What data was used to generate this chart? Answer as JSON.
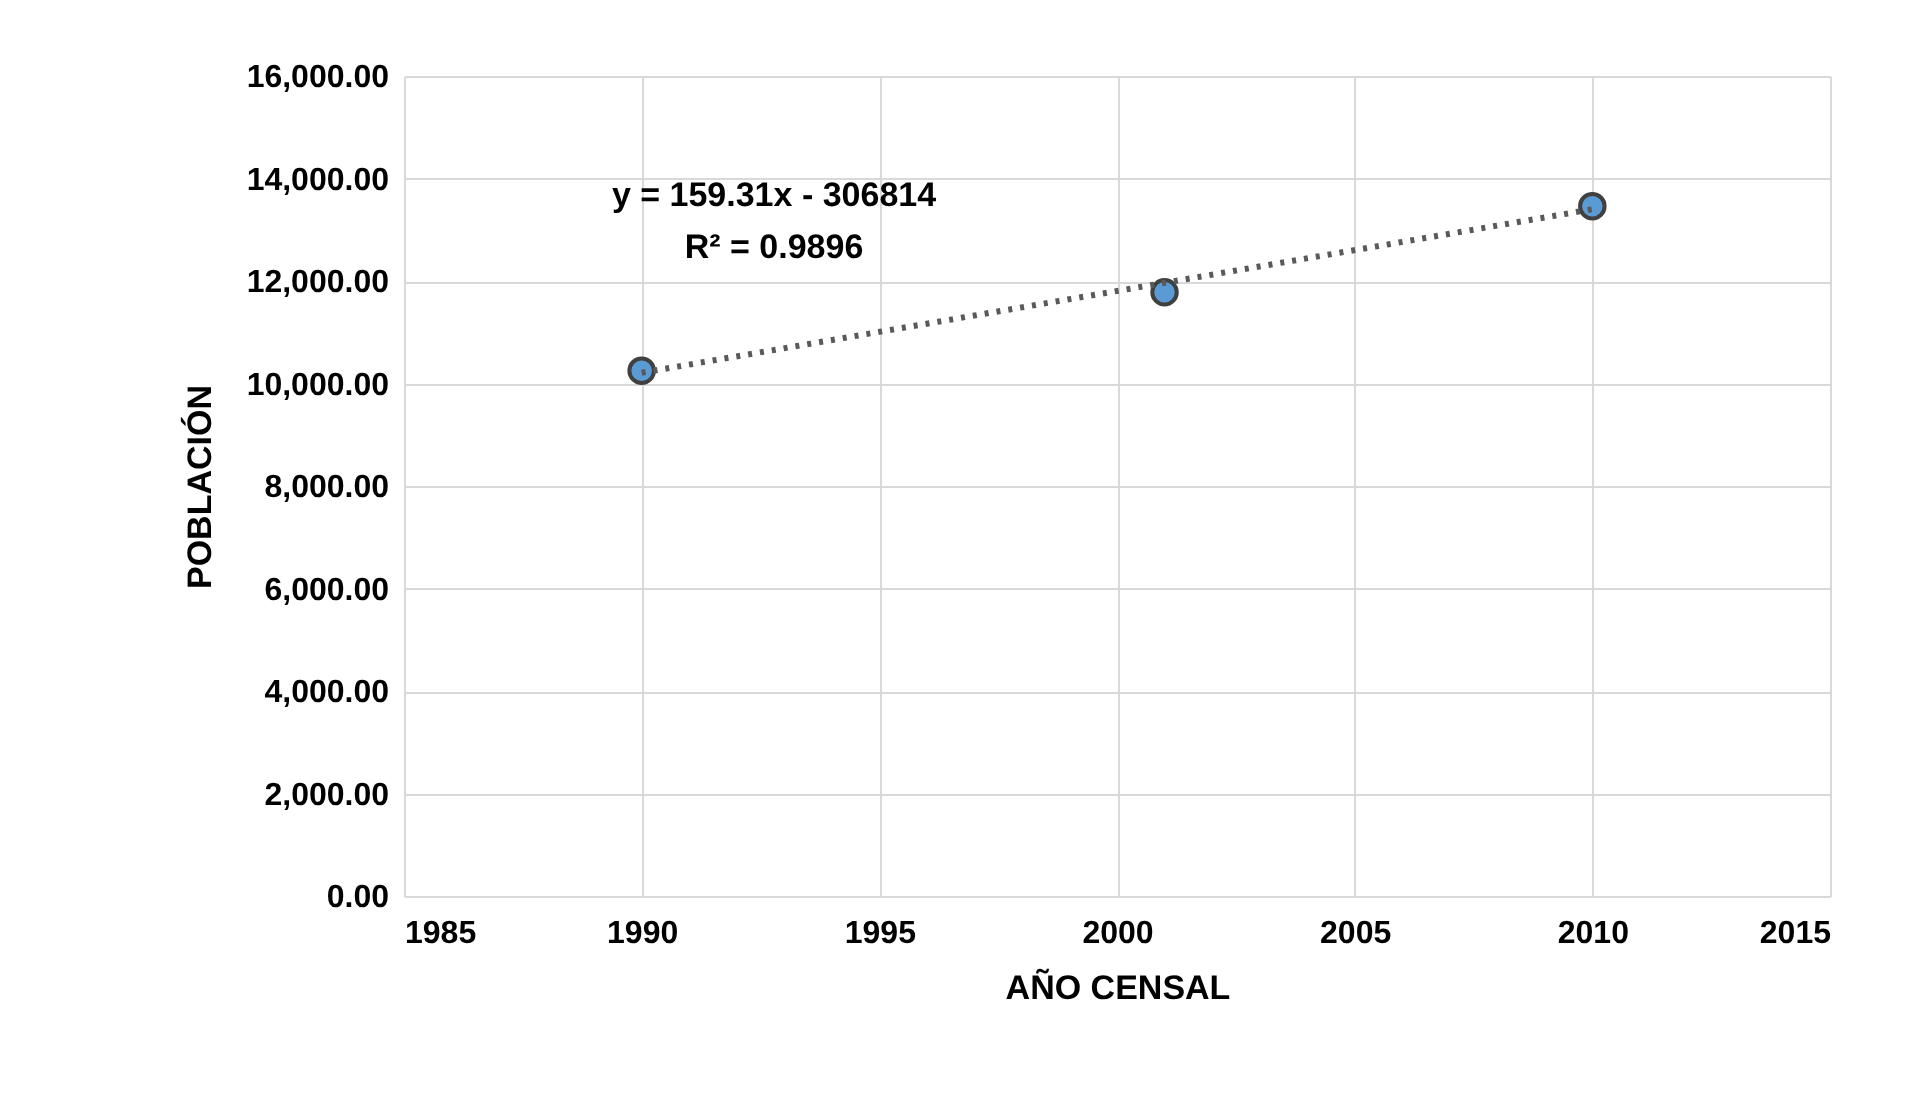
{
  "chart_data": {
    "type": "scatter",
    "xlabel": "AÑO CENSAL",
    "ylabel": "POBLACIÓN",
    "series": [
      {
        "color": "#5b9bd5",
        "x": [
          1990,
          2001,
          2010
        ],
        "values": [
          10250,
          11780,
          13460
        ]
      },
      {
        "type": "line",
        "color": "#595959",
        "x": [
          1990,
          2010
        ],
        "values": [
          10210,
          13400
        ],
        "line_style": "dotted",
        "marker": "none"
      }
    ],
    "annotations": [
      "y = 159.31x - 306814",
      "R² = 0.9896"
    ],
    "xlim": [
      1985,
      2015
    ],
    "xticks": [
      1985,
      1990,
      1995,
      2000,
      2005,
      2010,
      2015
    ],
    "ylim": [
      0,
      16000
    ],
    "yticks": [
      {
        "value": 0,
        "label": "0.00"
      },
      {
        "value": 2000,
        "label": "2,000.00"
      },
      {
        "value": 4000,
        "label": "4,000.00"
      },
      {
        "value": 6000,
        "label": "6,000.00"
      },
      {
        "value": 8000,
        "label": "8,000.00"
      },
      {
        "value": 10000,
        "label": "10,000.00"
      },
      {
        "value": 12000,
        "label": "12,000.00"
      },
      {
        "value": 14000,
        "label": "14,000.00"
      },
      {
        "value": 16000,
        "label": "16,000.00"
      }
    ],
    "grid": true,
    "marker": "circle"
  }
}
